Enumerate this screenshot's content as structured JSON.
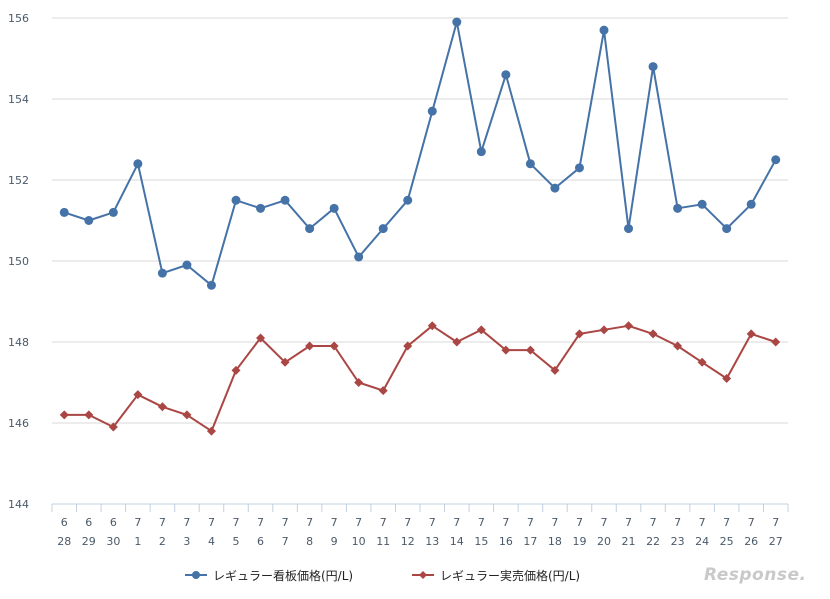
{
  "chart_data": {
    "type": "line",
    "categories": [
      [
        "6",
        "28"
      ],
      [
        "6",
        "29"
      ],
      [
        "6",
        "30"
      ],
      [
        "7",
        "1"
      ],
      [
        "7",
        "2"
      ],
      [
        "7",
        "3"
      ],
      [
        "7",
        "4"
      ],
      [
        "7",
        "5"
      ],
      [
        "7",
        "6"
      ],
      [
        "7",
        "7"
      ],
      [
        "7",
        "8"
      ],
      [
        "7",
        "9"
      ],
      [
        "7",
        "10"
      ],
      [
        "7",
        "11"
      ],
      [
        "7",
        "12"
      ],
      [
        "7",
        "13"
      ],
      [
        "7",
        "14"
      ],
      [
        "7",
        "15"
      ],
      [
        "7",
        "16"
      ],
      [
        "7",
        "17"
      ],
      [
        "7",
        "18"
      ],
      [
        "7",
        "19"
      ],
      [
        "7",
        "20"
      ],
      [
        "7",
        "21"
      ],
      [
        "7",
        "22"
      ],
      [
        "7",
        "23"
      ],
      [
        "7",
        "24"
      ],
      [
        "7",
        "25"
      ],
      [
        "7",
        "26"
      ],
      [
        "7",
        "27"
      ]
    ],
    "series": [
      {
        "name": "レギュラー看板価格(円/L)",
        "color": "#4572a7",
        "marker": "circle",
        "values": [
          151.2,
          151.0,
          151.2,
          152.4,
          149.7,
          149.9,
          149.4,
          151.5,
          151.3,
          151.5,
          150.8,
          151.3,
          150.1,
          150.8,
          151.5,
          153.7,
          155.9,
          152.7,
          154.6,
          152.4,
          151.8,
          152.3,
          155.7,
          150.8,
          154.8,
          151.3,
          151.4,
          150.8,
          151.4,
          152.5
        ]
      },
      {
        "name": "レギュラー実売価格(円/L)",
        "color": "#aa4643",
        "marker": "diamond",
        "values": [
          146.2,
          146.2,
          145.9,
          146.7,
          146.4,
          146.2,
          145.8,
          147.3,
          148.1,
          147.5,
          147.9,
          147.9,
          147.0,
          146.8,
          147.9,
          148.4,
          148.0,
          148.3,
          147.8,
          147.8,
          147.3,
          148.2,
          148.3,
          148.4,
          148.2,
          147.9,
          147.5,
          147.1,
          148.2,
          148.0
        ]
      }
    ],
    "ylim": [
      144,
      156
    ],
    "yticks": [
      144,
      146,
      148,
      150,
      152,
      154,
      156
    ],
    "grid": true,
    "legend_position": "bottom"
  },
  "watermark": "Response."
}
